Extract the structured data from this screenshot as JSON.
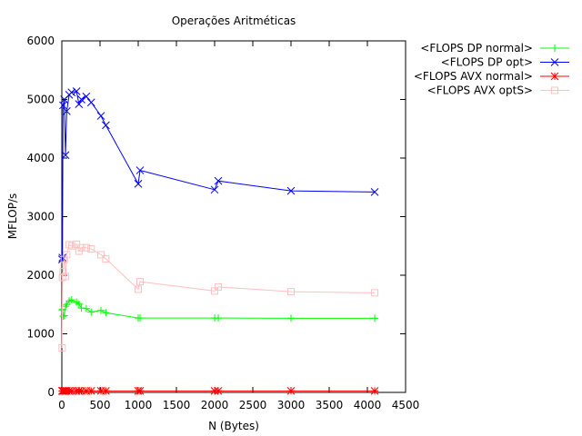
{
  "chart_data": {
    "type": "line",
    "title": "Operações Aritméticas",
    "xlabel": "N (Bytes)",
    "ylabel": "MFLOP/s",
    "xlim": [
      0,
      4500
    ],
    "ylim": [
      0,
      6000
    ],
    "xticks": [
      0,
      500,
      1000,
      1500,
      2000,
      2500,
      3000,
      3500,
      4000,
      4500
    ],
    "yticks": [
      0,
      1000,
      2000,
      3000,
      4000,
      5000,
      6000
    ],
    "grid": false,
    "legend_position": "top-right outside",
    "series": [
      {
        "name": "<FLOPS DP normal>",
        "color": "#00ff00",
        "marker": "plus",
        "x": [
          4,
          8,
          16,
          32,
          48,
          64,
          96,
          128,
          192,
          224,
          256,
          320,
          384,
          512,
          576,
          1000,
          1024,
          2000,
          2048,
          3000,
          4096
        ],
        "y": [
          1400,
          1420,
          1300,
          1310,
          1470,
          1500,
          1560,
          1580,
          1540,
          1510,
          1440,
          1430,
          1370,
          1400,
          1360,
          1270,
          1270,
          1270,
          1270,
          1265,
          1265
        ]
      },
      {
        "name": "<FLOPS DP opt>",
        "color": "#0000ff",
        "marker": "x",
        "x": [
          4,
          8,
          16,
          32,
          48,
          64,
          96,
          128,
          192,
          224,
          256,
          320,
          384,
          512,
          576,
          1000,
          1024,
          2000,
          2048,
          3000,
          4096
        ],
        "y": [
          2270,
          2300,
          4900,
          5000,
          4050,
          4800,
          5080,
          5120,
          5140,
          4920,
          5000,
          5050,
          4950,
          4720,
          4560,
          3560,
          3790,
          3460,
          3610,
          3440,
          3420
        ]
      },
      {
        "name": "<FLOPS AVX normal>",
        "color": "#ff0000",
        "marker": "star",
        "x": [
          4,
          8,
          16,
          32,
          48,
          64,
          96,
          128,
          192,
          224,
          256,
          320,
          384,
          512,
          576,
          1000,
          1024,
          2000,
          2048,
          3000,
          4096
        ],
        "y": [
          25,
          25,
          25,
          25,
          25,
          25,
          25,
          25,
          25,
          25,
          25,
          25,
          25,
          25,
          25,
          25,
          25,
          25,
          25,
          25,
          25
        ]
      },
      {
        "name": "<FLOPS AVX optS>",
        "color": "#ffc0c0",
        "marker": "square",
        "x": [
          4,
          8,
          16,
          32,
          48,
          64,
          96,
          128,
          192,
          224,
          256,
          320,
          384,
          512,
          576,
          1000,
          1024,
          2000,
          2048,
          3000,
          4096
        ],
        "y": [
          760,
          1960,
          2060,
          2270,
          1980,
          2350,
          2520,
          2500,
          2530,
          2410,
          2470,
          2470,
          2450,
          2350,
          2280,
          1760,
          1890,
          1730,
          1800,
          1720,
          1700
        ]
      }
    ]
  }
}
